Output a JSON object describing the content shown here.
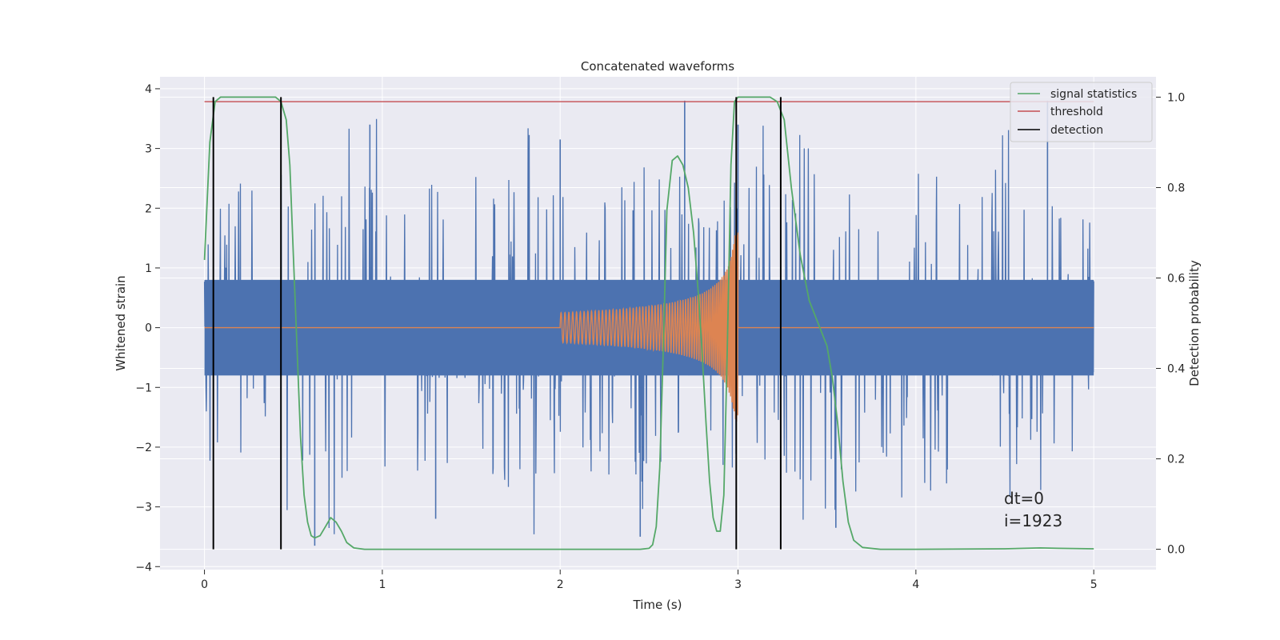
{
  "chart_data": {
    "type": "line",
    "title": "Concatenated waveforms",
    "xlabel": "Time (s)",
    "ylabel": "Whitened strain",
    "y2label": "Detection probability",
    "xlim": [
      -0.25,
      5.35
    ],
    "ylim": [
      -4.05,
      4.2
    ],
    "y2lim": [
      -0.045,
      1.045
    ],
    "xticks": [
      0,
      1,
      2,
      3,
      4,
      5
    ],
    "yticks": [
      -4,
      -3,
      -2,
      -1,
      0,
      1,
      2,
      3,
      4
    ],
    "y2ticks": [
      0.0,
      0.2,
      0.4,
      0.6,
      0.8,
      1.0
    ],
    "xtick_labels": [
      "0",
      "1",
      "2",
      "3",
      "4",
      "5"
    ],
    "ytick_labels": [
      "−4",
      "−3",
      "−2",
      "−1",
      "0",
      "1",
      "2",
      "3",
      "4"
    ],
    "y2tick_labels": [
      "0.0",
      "0.2",
      "0.4",
      "0.6",
      "0.8",
      "1.0"
    ],
    "grid": true,
    "legend_position": "top-right",
    "colors": {
      "strain": "#4c72b0",
      "waveform": "#dd8452",
      "signal_statistics": "#55a868",
      "threshold": "#c44e52",
      "detection": "#000000",
      "background": "#eaeaf2"
    },
    "series": [
      {
        "name": "",
        "kind": "whitened-strain-noise",
        "axis": "left",
        "x_range": [
          0,
          5
        ],
        "core_amplitude": 0.8,
        "typical_peak_range": [
          -2.6,
          2.6
        ],
        "max_peak": 3.8,
        "min_peak": -3.65
      },
      {
        "name": "",
        "kind": "chirp-waveform",
        "axis": "left",
        "x_range": [
          0,
          5
        ],
        "chirp_start": 2.0,
        "chirp_end": 3.0,
        "amplitude_start": 0.25,
        "amplitude_peak": 1.6
      },
      {
        "name": "signal statistics",
        "axis": "right",
        "x": [
          0.0,
          0.03,
          0.06,
          0.09,
          0.12,
          0.2,
          0.3,
          0.4,
          0.43,
          0.46,
          0.48,
          0.5,
          0.52,
          0.54,
          0.56,
          0.58,
          0.6,
          0.62,
          0.65,
          0.68,
          0.71,
          0.74,
          0.77,
          0.8,
          0.84,
          0.9,
          1.0,
          1.5,
          2.0,
          2.45,
          2.5,
          2.52,
          2.54,
          2.56,
          2.58,
          2.6,
          2.63,
          2.66,
          2.69,
          2.72,
          2.75,
          2.78,
          2.8,
          2.82,
          2.84,
          2.86,
          2.88,
          2.9,
          2.92,
          2.94,
          2.96,
          2.98,
          3.0,
          3.1,
          3.18,
          3.22,
          3.26,
          3.3,
          3.35,
          3.4,
          3.45,
          3.5,
          3.53,
          3.56,
          3.59,
          3.62,
          3.65,
          3.7,
          3.8,
          4.0,
          4.5,
          4.7,
          4.8,
          5.0
        ],
        "values": [
          0.64,
          0.9,
          0.99,
          1.0,
          1.0,
          1.0,
          1.0,
          1.0,
          0.99,
          0.95,
          0.85,
          0.65,
          0.45,
          0.25,
          0.12,
          0.06,
          0.03,
          0.025,
          0.03,
          0.05,
          0.07,
          0.06,
          0.04,
          0.015,
          0.003,
          0.0,
          0.0,
          0.0,
          0.0,
          0.0,
          0.002,
          0.01,
          0.05,
          0.18,
          0.45,
          0.75,
          0.86,
          0.87,
          0.85,
          0.8,
          0.7,
          0.55,
          0.42,
          0.28,
          0.15,
          0.07,
          0.04,
          0.04,
          0.12,
          0.45,
          0.85,
          0.99,
          1.0,
          1.0,
          1.0,
          0.99,
          0.95,
          0.8,
          0.65,
          0.55,
          0.5,
          0.45,
          0.38,
          0.28,
          0.15,
          0.06,
          0.02,
          0.004,
          0.0,
          0.0,
          0.001,
          0.003,
          0.002,
          0.001
        ]
      },
      {
        "name": "threshold",
        "axis": "right",
        "x": [
          0,
          5
        ],
        "values": [
          0.99,
          0.99
        ]
      },
      {
        "name": "detection",
        "axis": "right",
        "kind": "vertical-lines",
        "x": [
          0.05,
          0.43,
          2.99,
          3.24
        ],
        "range": [
          0,
          1
        ]
      }
    ],
    "annotations": [
      "dt=0",
      "i=1923"
    ]
  }
}
